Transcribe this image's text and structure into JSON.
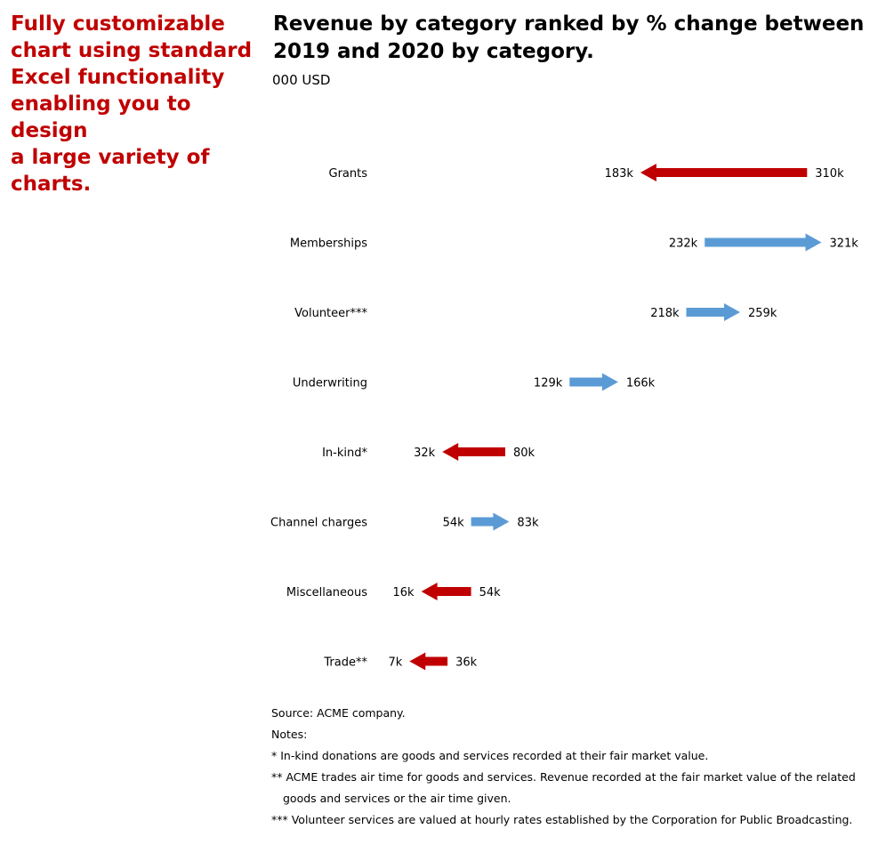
{
  "promo_text": "Fully customizable\nchart using standard\nExcel functionality\nenabling you to design\na large variety of\ncharts.",
  "title": "Revenue by category ranked by % change between\n2019 and 2020 by category.",
  "subtitle": "000 USD",
  "colors": {
    "increase": "#5b9bd5",
    "decrease": "#c00000",
    "promo": "#c00000"
  },
  "chart_data": {
    "type": "arrow",
    "title": "Revenue by category ranked by % change between 2019 and 2020 by category.",
    "unit": "000 USD",
    "categories": [
      "Grants",
      "Memberships",
      "Volunteer***",
      "Underwriting",
      "In-kind*",
      "Channel charges",
      "Miscellaneous",
      "Trade**"
    ],
    "series": [
      {
        "name": "2019",
        "values": [
          310,
          232,
          218,
          129,
          80,
          54,
          54,
          36
        ]
      },
      {
        "name": "2020",
        "values": [
          183,
          321,
          259,
          166,
          32,
          83,
          16,
          7
        ]
      }
    ],
    "labels_2019": [
      "310k",
      "232k",
      "218k",
      "129k",
      "80k",
      "54k",
      "54k",
      "36k"
    ],
    "labels_2020": [
      "183k",
      "321k",
      "259k",
      "166k",
      "32k",
      "83k",
      "16k",
      "7k"
    ]
  },
  "notes": {
    "source": "Source: ACME company.",
    "heading": "Notes:",
    "note1": "* In-kind donations are goods and services recorded at their fair market value.",
    "note2": "** ACME trades air time for goods and services. Revenue recorded at the fair market value of the related goods and services or the air time given.",
    "note3": "*** Volunteer services are valued at hourly rates established by the Corporation for Public Broadcasting."
  }
}
